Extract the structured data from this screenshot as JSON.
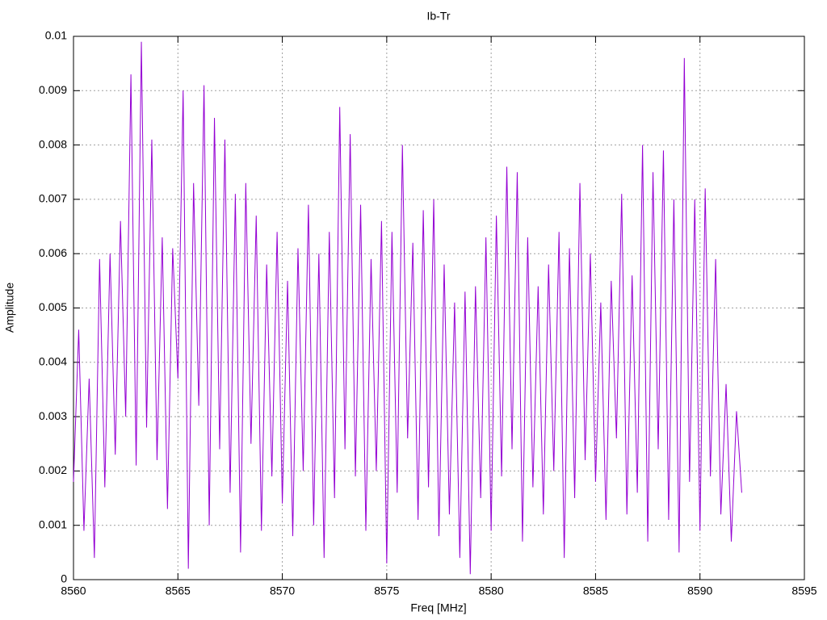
{
  "chart_data": {
    "type": "line",
    "title": "Ib-Tr",
    "xlabel": "Freq [MHz]",
    "ylabel": "Amplitude",
    "color": "#9400d3",
    "grid": true,
    "xlim": [
      8560,
      8595
    ],
    "xticks": [
      8560,
      8565,
      8570,
      8575,
      8580,
      8585,
      8590,
      8595
    ],
    "ylim": [
      0,
      0.01
    ],
    "yticks": [
      0,
      0.001,
      0.002,
      0.003,
      0.004,
      0.005,
      0.006,
      0.007,
      0.008,
      0.009,
      0.01
    ],
    "x": [
      8560,
      8560.25,
      8560.5,
      8560.75,
      8561,
      8561.25,
      8561.5,
      8561.75,
      8562,
      8562.25,
      8562.5,
      8562.75,
      8563,
      8563.25,
      8563.5,
      8563.75,
      8564,
      8564.25,
      8564.5,
      8564.75,
      8565,
      8565.25,
      8565.5,
      8565.75,
      8566,
      8566.25,
      8566.5,
      8566.75,
      8567,
      8567.25,
      8567.5,
      8567.75,
      8568,
      8568.25,
      8568.5,
      8568.75,
      8569,
      8569.25,
      8569.5,
      8569.75,
      8570,
      8570.25,
      8570.5,
      8570.75,
      8571,
      8571.25,
      8571.5,
      8571.75,
      8572,
      8572.25,
      8572.5,
      8572.75,
      8573,
      8573.25,
      8573.5,
      8573.75,
      8574,
      8574.25,
      8574.5,
      8574.75,
      8575,
      8575.25,
      8575.5,
      8575.75,
      8576,
      8576.25,
      8576.5,
      8576.75,
      8577,
      8577.25,
      8577.5,
      8577.75,
      8578,
      8578.25,
      8578.5,
      8578.75,
      8579,
      8579.25,
      8579.5,
      8579.75,
      8580,
      8580.25,
      8580.5,
      8580.75,
      8581,
      8581.25,
      8581.5,
      8581.75,
      8582,
      8582.25,
      8582.5,
      8582.75,
      8583,
      8583.25,
      8583.5,
      8583.75,
      8584,
      8584.25,
      8584.5,
      8584.75,
      8585,
      8585.25,
      8585.5,
      8585.75,
      8586,
      8586.25,
      8586.5,
      8586.75,
      8587,
      8587.25,
      8587.5,
      8587.75,
      8588,
      8588.25,
      8588.5,
      8588.75,
      8589,
      8589.25,
      8589.5,
      8589.75,
      8590,
      8590.25,
      8590.5,
      8590.75,
      8591,
      8591.25,
      8591.5,
      8591.75,
      8592
    ],
    "values": [
      0.0018,
      0.0046,
      0.0009,
      0.0037,
      0.0004,
      0.0059,
      0.0017,
      0.006,
      0.0023,
      0.0066,
      0.003,
      0.0093,
      0.0021,
      0.0099,
      0.0028,
      0.0081,
      0.0022,
      0.0063,
      0.0013,
      0.0061,
      0.0037,
      0.009,
      0.0002,
      0.0073,
      0.0032,
      0.0091,
      0.001,
      0.0085,
      0.0024,
      0.0081,
      0.0016,
      0.0071,
      0.0005,
      0.0073,
      0.0025,
      0.0067,
      0.0009,
      0.0058,
      0.0019,
      0.0064,
      0.0014,
      0.0055,
      0.0008,
      0.0061,
      0.002,
      0.0069,
      0.001,
      0.006,
      0.0004,
      0.0064,
      0.0015,
      0.0087,
      0.0024,
      0.0082,
      0.0019,
      0.0069,
      0.0009,
      0.0059,
      0.002,
      0.0066,
      0.0003,
      0.0064,
      0.0016,
      0.008,
      0.0026,
      0.0062,
      0.0011,
      0.0068,
      0.0017,
      0.007,
      0.0008,
      0.0058,
      0.0012,
      0.0051,
      0.0004,
      0.0053,
      0.0001,
      0.0054,
      0.0015,
      0.0063,
      0.0009,
      0.0067,
      0.0019,
      0.0076,
      0.0024,
      0.0075,
      0.0007,
      0.0063,
      0.0017,
      0.0054,
      0.0012,
      0.0058,
      0.002,
      0.0064,
      0.0004,
      0.0061,
      0.0015,
      0.0073,
      0.0022,
      0.006,
      0.0018,
      0.0051,
      0.0011,
      0.0055,
      0.0026,
      0.0071,
      0.0012,
      0.0056,
      0.0016,
      0.008,
      0.0007,
      0.0075,
      0.0024,
      0.0079,
      0.0011,
      0.007,
      0.0005,
      0.0096,
      0.0018,
      0.007,
      0.0009,
      0.0072,
      0.0019,
      0.0059,
      0.0012,
      0.0036,
      0.0007,
      0.0031,
      0.0016
    ]
  }
}
